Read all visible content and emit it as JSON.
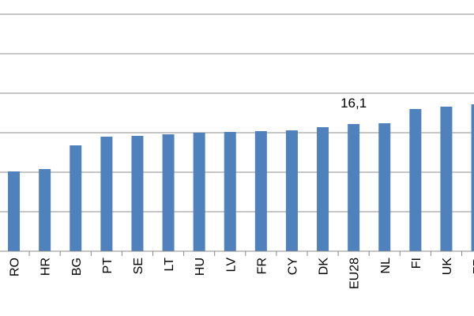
{
  "chart_data": {
    "type": "bar",
    "categories": [
      "RO",
      "HR",
      "BG",
      "PT",
      "SE",
      "LT",
      "HU",
      "LV",
      "FR",
      "CY",
      "DK",
      "EU28",
      "NL",
      "FI",
      "UK",
      "FR"
    ],
    "values": [
      10.1,
      10.4,
      13.4,
      14.5,
      14.6,
      14.8,
      15.0,
      15.1,
      15.2,
      15.3,
      15.7,
      16.1,
      16.2,
      18.0,
      18.3,
      18.6
    ],
    "data_labels": [
      {
        "category": "EU28",
        "text": "16,1"
      }
    ],
    "ylim": [
      0,
      30
    ],
    "gridlines": [
      0,
      5,
      10,
      15,
      20,
      25,
      30
    ],
    "grid": true,
    "bar_color": "#4f81bd",
    "title": "",
    "xlabel": "",
    "ylabel": ""
  }
}
